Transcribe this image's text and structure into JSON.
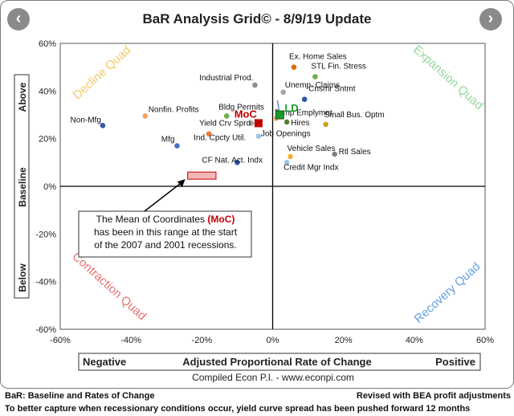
{
  "nav": {
    "prev_label": "‹",
    "next_label": "›"
  },
  "colors": {
    "decline": "#f2c14e",
    "expansion": "#7fd18a",
    "contraction": "#e05a5a",
    "recovery": "#4a90d9",
    "moc": "#c00000",
    "ld": "#1a9a2a"
  },
  "chart_data": {
    "type": "scatter",
    "title": "BaR Analysis Grid© - 8/9/19 Update",
    "xlabel": "Adjusted Proportional Rate of Change",
    "ylabel_top": "Above",
    "ylabel_mid": "Baseline",
    "ylabel_bottom": "Below",
    "x_left_label": "Negative",
    "x_right_label": "Positive",
    "source": "Compiled Econ P.I. - www.econpi.com",
    "xlim": [
      -60,
      60
    ],
    "ylim": [
      -60,
      60
    ],
    "xticks": [
      "-60%",
      "-40%",
      "-20%",
      "0%",
      "20%",
      "40%",
      "60%"
    ],
    "yticks": [
      "60%",
      "40%",
      "20%",
      "0%",
      "-20%",
      "-40%",
      "-60%"
    ],
    "quadrants": {
      "decline": "Decline Quad",
      "expansion": "Expansion Quad",
      "contraction": "Contraction Quad",
      "recovery": "Recovery Quad"
    },
    "points": [
      {
        "name": "Non-Mfg",
        "x": -48,
        "y": 25.5,
        "color": "#2f55a4"
      },
      {
        "name": "Nonfin. Profits",
        "x": -36,
        "y": 29.5,
        "color": "#f4a460"
      },
      {
        "name": "Bldg Permits",
        "x": -13,
        "y": 29.5,
        "color": "#70ad47"
      },
      {
        "name": "Industrial Prod.",
        "x": -5,
        "y": 42.5,
        "color": "#8c8c8c"
      },
      {
        "name": "Yield Crv Sprd",
        "x": -6,
        "y": 26.5,
        "color": "#a5a5a5"
      },
      {
        "name": "Mfg",
        "x": -27,
        "y": 17,
        "color": "#4472c4"
      },
      {
        "name": "Ind. Cpcty Util.",
        "x": -18,
        "y": 22,
        "color": "#ed7d31"
      },
      {
        "name": "CF Nat. Act. Indx",
        "x": -10,
        "y": 10,
        "color": "#2f55a4"
      },
      {
        "name": "Job Openings",
        "x": -4,
        "y": 21,
        "color": "#9dc3e6"
      },
      {
        "name": "Ex. Home Sales",
        "x": 6,
        "y": 50,
        "color": "#e26b0a"
      },
      {
        "name": "STL Fin. Stress",
        "x": 12,
        "y": 46,
        "color": "#70ad47"
      },
      {
        "name": "Unemp. Claims",
        "x": 3,
        "y": 39.5,
        "color": "#a5a5a5"
      },
      {
        "name": "Cnsmr Sntmt",
        "x": 9,
        "y": 36.5,
        "color": "#2f55a4"
      },
      {
        "name": "Hires",
        "x": 4,
        "y": 27,
        "color": "#548235"
      },
      {
        "name": "Temp Emplymnt",
        "x": 1,
        "y": 28.5,
        "color": "#f4a460"
      },
      {
        "name": "Small Bus. Optm",
        "x": 15,
        "y": 26,
        "color": "#c9a227"
      },
      {
        "name": "Vehicle Sales",
        "x": 5,
        "y": 12.5,
        "color": "#f2b134"
      },
      {
        "name": "Rtl Sales",
        "x": 17.5,
        "y": 13.5,
        "color": "#808080"
      },
      {
        "name": "Credit Mgr Indx",
        "x": 4,
        "y": 10,
        "color": "#9dc3e6"
      }
    ],
    "moc": {
      "label": "MoC",
      "x": -4,
      "y": 26.5
    },
    "ld": {
      "label": "LD",
      "x": 2,
      "y": 30
    },
    "moc_range": {
      "x": [
        -24,
        -16
      ],
      "y": [
        3,
        6
      ]
    },
    "annotation": {
      "line1_prefix": "The Mean of Coordinates ",
      "line1_highlight": "(MoC)",
      "line2": "has been in this range at the start",
      "line3": "of the 2007 and 2001 recessions."
    }
  },
  "footer": {
    "left": "BaR: Baseline and Rates of Change",
    "right": "Revised with BEA profit adjustments",
    "note": "To better capture when recessionary conditions occur, yield curve spread has been pushed forward 12 months"
  }
}
